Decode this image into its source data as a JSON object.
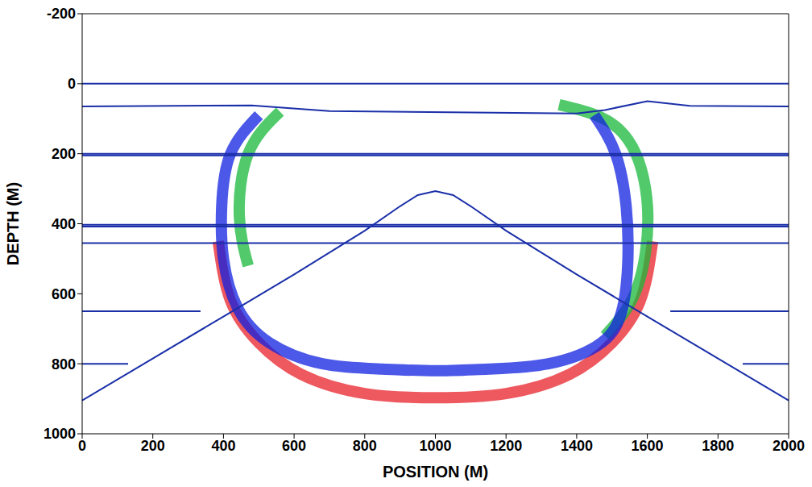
{
  "chart_data": {
    "type": "line",
    "xlabel": "POSITION (M)",
    "ylabel": "DEPTH (M)",
    "xlim": [
      0,
      2000
    ],
    "ylim": [
      1000,
      -200
    ],
    "xticks": [
      0,
      200,
      400,
      600,
      800,
      1000,
      1200,
      1400,
      1600,
      1800,
      2000
    ],
    "yticks": [
      -200,
      0,
      200,
      400,
      600,
      800,
      1000
    ],
    "grid": false,
    "series": [
      {
        "color": "#e8202a",
        "line_style": "thick",
        "x": [
          385,
          420,
          500,
          620,
          800,
          1000,
          1200,
          1380,
          1500,
          1580,
          1615
        ],
        "values": [
          450,
          620,
          740,
          830,
          885,
          897,
          885,
          830,
          740,
          620,
          450
        ]
      },
      {
        "color": "#18b83a",
        "line_style": "thick",
        "x": [
          1350,
          1520,
          1595,
          1595,
          1555,
          1480
        ],
        "values": [
          60,
          130,
          300,
          480,
          620,
          720
        ]
      },
      {
        "color": "#18b83a",
        "line_style": "thick",
        "x": [
          560,
          470,
          445,
          470
        ],
        "values": [
          80,
          200,
          380,
          520
        ]
      },
      {
        "color": "#1020e0",
        "line_style": "thick",
        "x": [
          500,
          420,
          395,
          400,
          440,
          530,
          680,
          850,
          1000,
          1150,
          1320,
          1470,
          1530,
          1545,
          1540,
          1510,
          1450
        ],
        "values": [
          90,
          200,
          350,
          500,
          640,
          740,
          800,
          815,
          820,
          815,
          800,
          740,
          640,
          500,
          350,
          200,
          90
        ]
      },
      {
        "color": "#1a2fa8",
        "line_style": "thin",
        "x": [
          0,
          2000
        ],
        "values": [
          0,
          0
        ]
      },
      {
        "color": "#1a2fa8",
        "line_style": "thin",
        "x": [
          0,
          480,
          700,
          1400,
          1480,
          1600,
          1720,
          2000
        ],
        "values": [
          65,
          62,
          78,
          85,
          75,
          50,
          63,
          65
        ]
      },
      {
        "color": "#1a2fa8",
        "line_style": "thin",
        "x": [
          0,
          2000
        ],
        "values": [
          200,
          200
        ]
      },
      {
        "color": "#1a2fa8",
        "line_style": "thin",
        "x": [
          0,
          2000
        ],
        "values": [
          205,
          205
        ]
      },
      {
        "color": "#1a2fa8",
        "line_style": "thin",
        "x": [
          0,
          2000
        ],
        "values": [
          403,
          403
        ]
      },
      {
        "color": "#1a2fa8",
        "line_style": "thin",
        "x": [
          0,
          2000
        ],
        "values": [
          408,
          408
        ]
      },
      {
        "color": "#1a2fa8",
        "line_style": "thin",
        "x": [
          0,
          2000
        ],
        "values": [
          455,
          455
        ]
      },
      {
        "color": "#1a2fa8",
        "line_style": "thin",
        "x": [
          0,
          200,
          400,
          600,
          800,
          900,
          950,
          1000,
          1050,
          1100,
          1200,
          1400,
          1600,
          1800,
          2000
        ],
        "values": [
          905,
          785,
          665,
          545,
          420,
          350,
          318,
          307,
          318,
          350,
          420,
          545,
          665,
          785,
          905
        ]
      },
      {
        "color": "#1a2fa8",
        "line_style": "thin",
        "x": [
          0,
          335
        ],
        "values": [
          650,
          650
        ]
      },
      {
        "color": "#1a2fa8",
        "line_style": "thin",
        "x": [
          1665,
          2000
        ],
        "values": [
          650,
          650
        ]
      },
      {
        "color": "#1a2fa8",
        "line_style": "thin",
        "x": [
          0,
          130
        ],
        "values": [
          800,
          800
        ]
      },
      {
        "color": "#1a2fa8",
        "line_style": "thin",
        "x": [
          1870,
          2000
        ],
        "values": [
          800,
          800
        ]
      }
    ]
  }
}
